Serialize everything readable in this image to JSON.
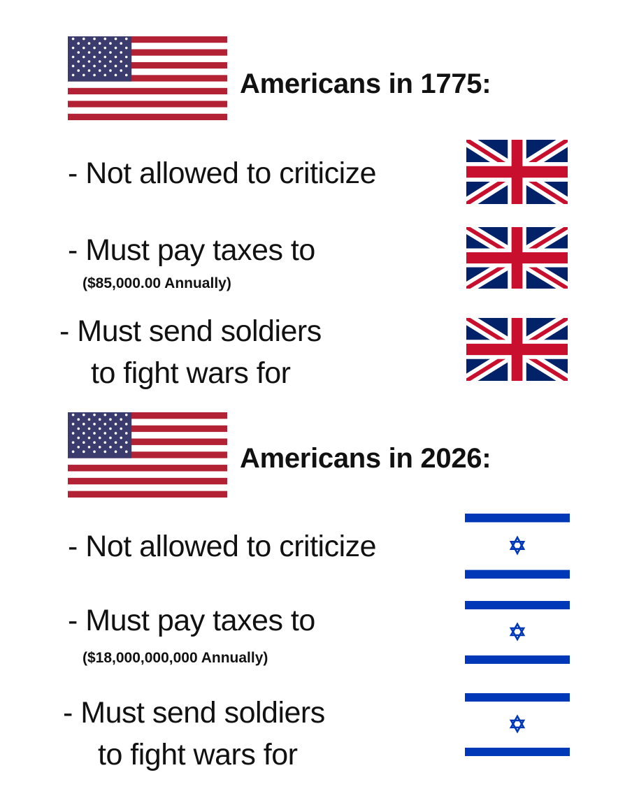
{
  "sections": [
    {
      "heading": "Americans in 1775:",
      "flag": "us-flag",
      "items": [
        {
          "text": "- Not allowed to criticize",
          "flag": "uk-flag"
        },
        {
          "text": "- Must pay taxes to",
          "note": "($85,000.00 Annually)",
          "flag": "uk-flag"
        },
        {
          "text": "- Must send soldiers",
          "text2": "to fight wars for",
          "flag": "uk-flag"
        }
      ]
    },
    {
      "heading": "Americans in 2026:",
      "flag": "us-flag",
      "items": [
        {
          "text": "- Not allowed to criticize",
          "flag": "israel-flag"
        },
        {
          "text": "- Must pay taxes to",
          "note": "($18,000,000,000 Annually)",
          "flag": "israel-flag"
        },
        {
          "text": "- Must send soldiers",
          "text2": "to fight wars for",
          "flag": "israel-flag"
        }
      ]
    }
  ],
  "colors": {
    "us_red": "#b22234",
    "us_blue": "#3c3b6e",
    "uk_red": "#c8102e",
    "uk_blue": "#012169",
    "israel_blue": "#0038b8"
  }
}
